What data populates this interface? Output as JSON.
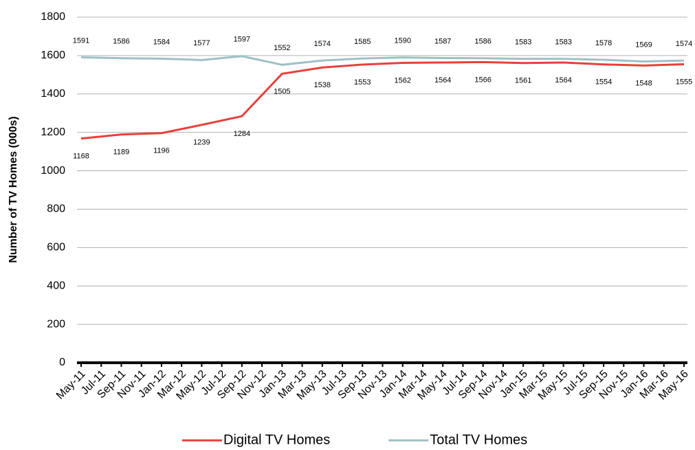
{
  "chart_data": {
    "type": "line",
    "ylabel": "Number of TV Homes (000s)",
    "categories": [
      "May-11",
      "Jul-11",
      "Sep-11",
      "Nov-11",
      "Jan-12",
      "Mar-12",
      "May-12",
      "Jul-12",
      "Sep-12",
      "Nov-12",
      "Jan-13",
      "Mar-13",
      "May-13",
      "Jul-13",
      "Sep-13",
      "Nov-13",
      "Jan-14",
      "Mar-14",
      "May-14",
      "Jul-14",
      "Sep-14",
      "Nov-14",
      "Jan-15",
      "Mar-15",
      "May-15",
      "Jul-15",
      "Sep-15",
      "Nov-15",
      "Jan-16",
      "Mar-16",
      "May-16"
    ],
    "x": [
      "May-11",
      "Sep-11",
      "Jan-12",
      "May-12",
      "Sep-12",
      "Jan-13",
      "May-13",
      "Sep-13",
      "Jan-14",
      "May-14",
      "Sep-14",
      "Jan-15",
      "May-15",
      "Sep-15",
      "Jan-16",
      "May-16"
    ],
    "series": [
      {
        "name": "Digital TV Homes",
        "color": "#e8403a",
        "values": [
          1168,
          1189,
          1196,
          1239,
          1284,
          1505,
          1538,
          1553,
          1562,
          1564,
          1566,
          1561,
          1564,
          1554,
          1548,
          1555
        ]
      },
      {
        "name": "Total TV Homes",
        "color": "#9fc0c5",
        "values": [
          1591,
          1586,
          1584,
          1577,
          1597,
          1552,
          1574,
          1585,
          1590,
          1587,
          1586,
          1583,
          1583,
          1578,
          1569,
          1574
        ]
      }
    ],
    "ylim": [
      0,
      1800
    ],
    "yticks": [
      0,
      200,
      400,
      600,
      800,
      1000,
      1200,
      1400,
      1600,
      1800
    ],
    "grid": true,
    "legend": "bottom"
  }
}
